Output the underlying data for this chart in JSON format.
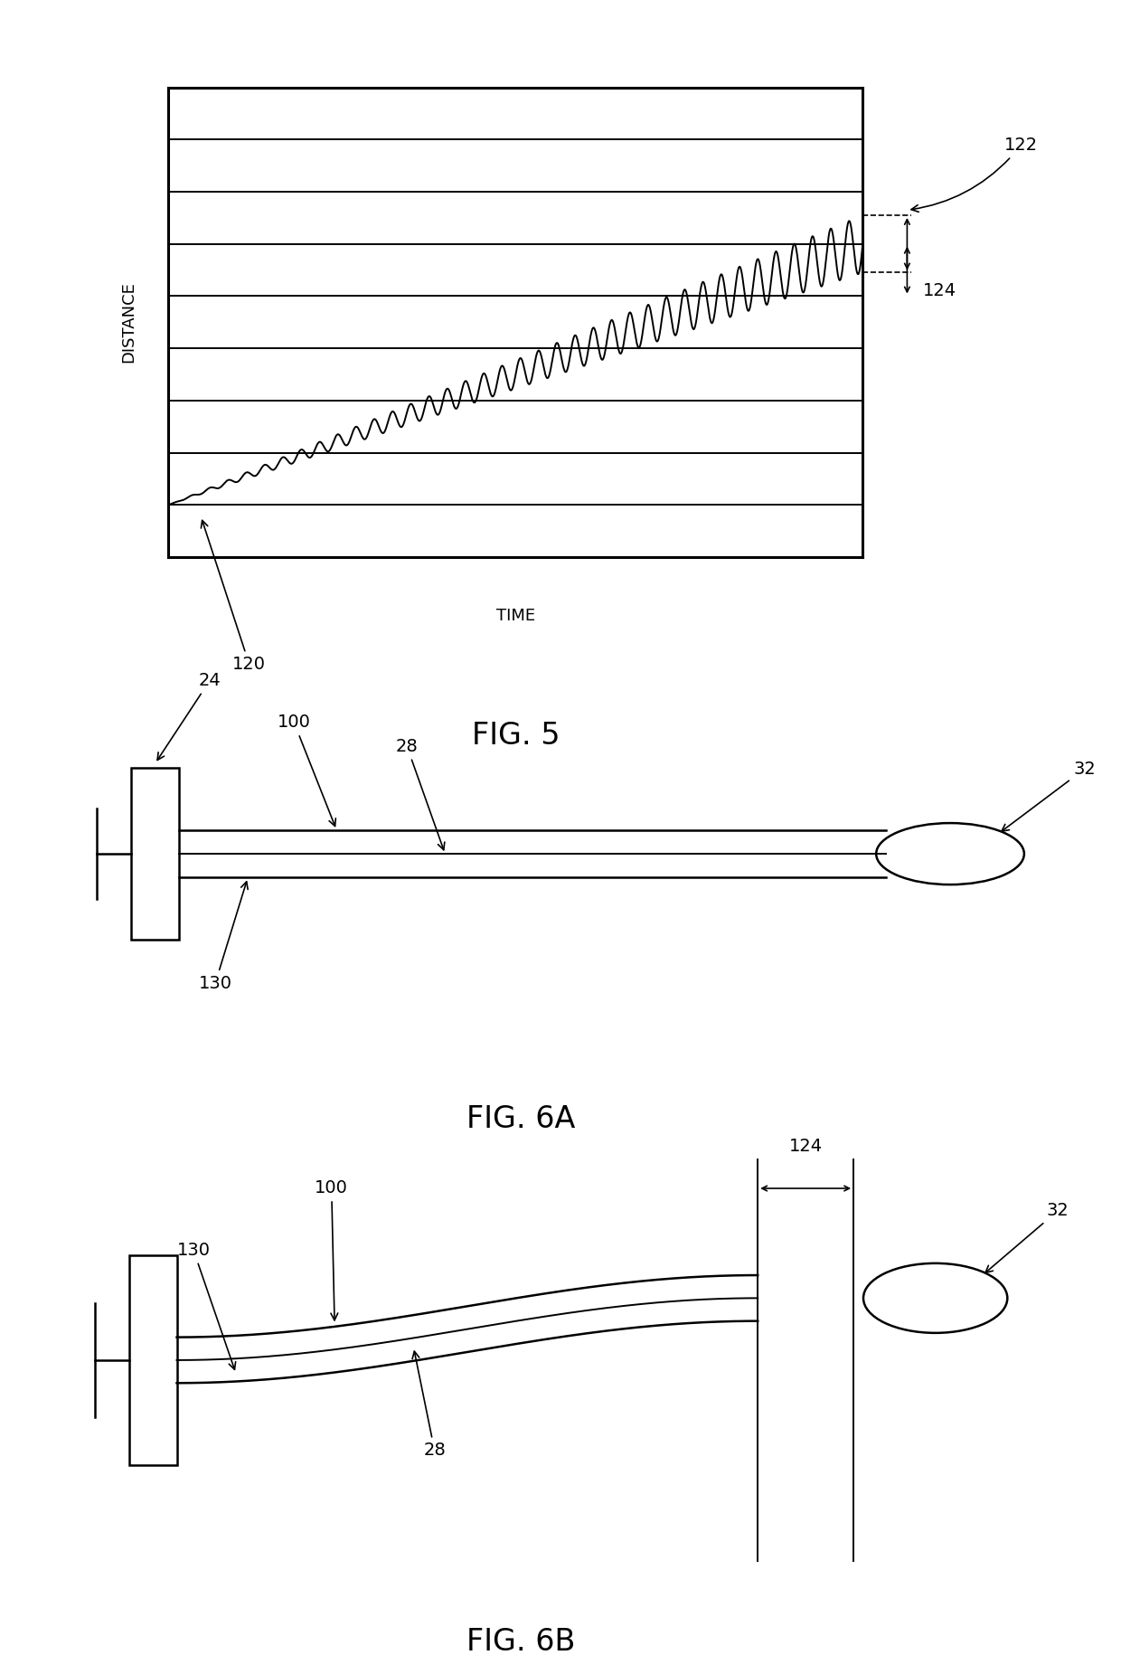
{
  "fig5_title": "FIG. 5",
  "fig6a_title": "FIG. 6A",
  "fig6b_title": "FIG. 6B",
  "line_color": "#000000",
  "bg_color": "#ffffff",
  "lw_thick": 2.2,
  "lw_med": 1.8,
  "lw_thin": 1.4,
  "font_label": 14,
  "font_caption": 24,
  "font_axis": 13
}
